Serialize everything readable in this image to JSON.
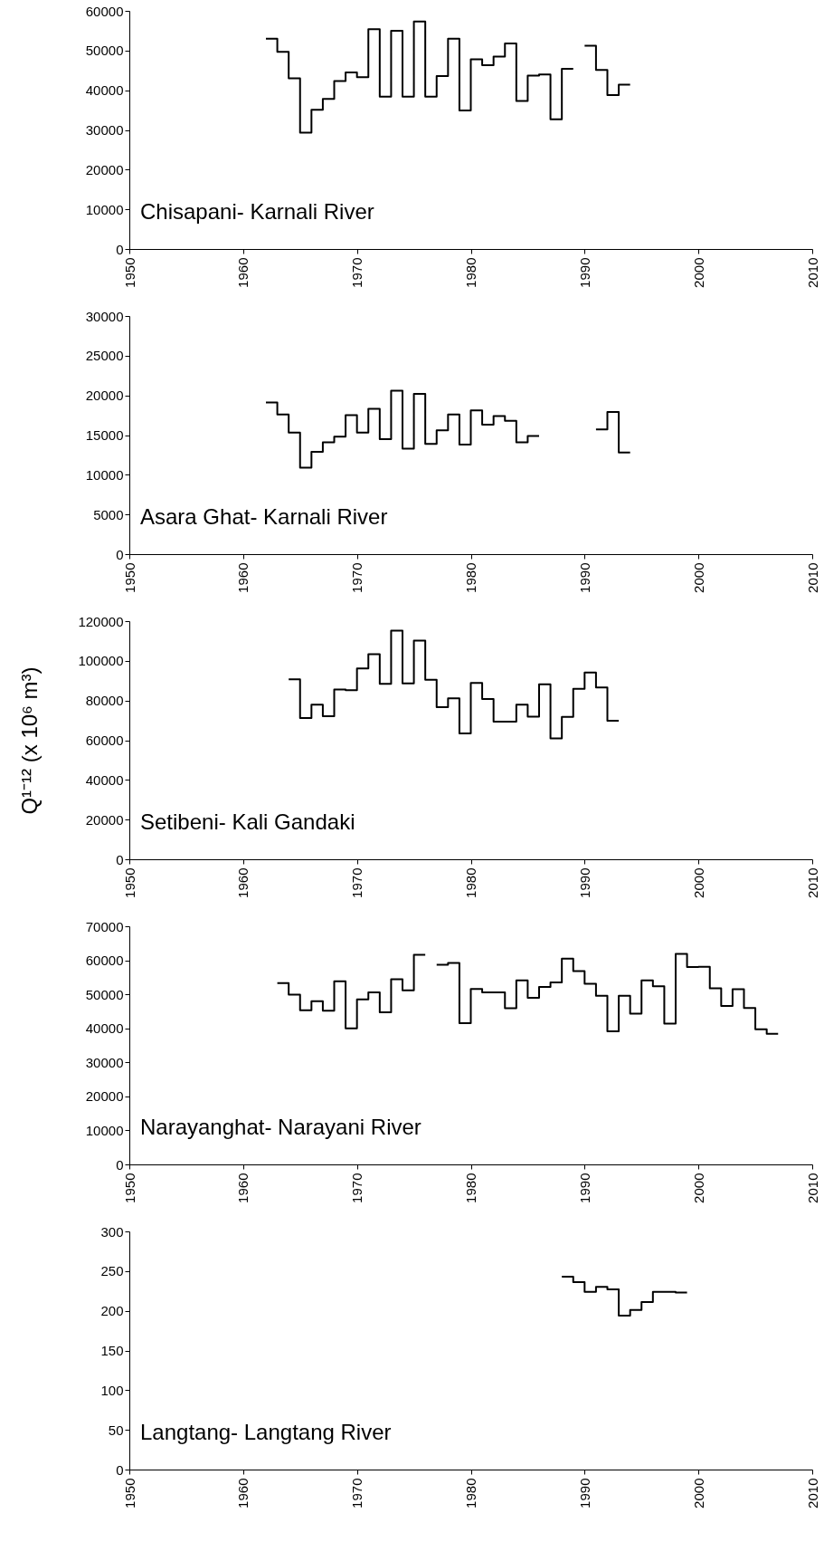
{
  "chart_data": [
    {
      "type": "step",
      "annotations": [
        "Chisapani- Karnali River"
      ],
      "xlim": [
        1950,
        2010
      ],
      "xticks": [
        1950,
        1960,
        1970,
        1980,
        1990,
        2000,
        2010
      ],
      "ylim": [
        0,
        60000
      ],
      "yticks": [
        0,
        10000,
        20000,
        30000,
        40000,
        50000,
        60000
      ],
      "series": [
        {
          "color": "#000000",
          "x": [
            1962,
            1963,
            1964,
            1965,
            1966,
            1967,
            1968,
            1969,
            1970,
            1971,
            1972,
            1973,
            1974,
            1975,
            1976,
            1977,
            1978,
            1979,
            1980,
            1981,
            1982,
            1983,
            1984,
            1985,
            1986,
            1987,
            1988,
            1989,
            1990,
            1991,
            1992,
            1993,
            1994
          ],
          "values": [
            53000,
            49700,
            43000,
            29300,
            35100,
            37800,
            42300,
            44500,
            43300,
            55400,
            38400,
            55000,
            38400,
            57300,
            38400,
            43600,
            53000,
            34900,
            47800,
            46300,
            48500,
            51800,
            37300,
            43700,
            44000,
            32700,
            45400,
            null,
            51200,
            45100,
            38800,
            41400,
            41400
          ]
        }
      ]
    },
    {
      "type": "step",
      "annotations": [
        "Asara Ghat- Karnali River"
      ],
      "xlim": [
        1950,
        2010
      ],
      "xticks": [
        1950,
        1960,
        1970,
        1980,
        1990,
        2000,
        2010
      ],
      "ylim": [
        0,
        30000
      ],
      "yticks": [
        0,
        5000,
        10000,
        15000,
        20000,
        25000,
        30000
      ],
      "series": [
        {
          "color": "#000000",
          "x": [
            1962,
            1963,
            1964,
            1965,
            1966,
            1967,
            1968,
            1969,
            1970,
            1971,
            1972,
            1973,
            1974,
            1975,
            1976,
            1977,
            1978,
            1979,
            1980,
            1981,
            1982,
            1983,
            1984,
            1985,
            1986,
            1987,
            1988,
            1989,
            1990,
            1991,
            1992,
            1993,
            1994
          ],
          "values": [
            19100,
            17600,
            15300,
            10900,
            12900,
            14100,
            14800,
            17500,
            15300,
            18300,
            14500,
            20600,
            13300,
            20200,
            13900,
            15600,
            17600,
            13800,
            18100,
            16300,
            17400,
            16800,
            14100,
            14900,
            null,
            null,
            null,
            null,
            null,
            15700,
            17900,
            12800,
            12800
          ]
        }
      ]
    },
    {
      "type": "step",
      "ylabel": "Q¹⁻¹²  (x 10⁶ m³)",
      "annotations": [
        "Setibeni- Kali Gandaki"
      ],
      "xlim": [
        1950,
        2010
      ],
      "xticks": [
        1950,
        1960,
        1970,
        1980,
        1990,
        2000,
        2010
      ],
      "ylim": [
        0,
        120000
      ],
      "yticks": [
        0,
        20000,
        40000,
        60000,
        80000,
        100000,
        120000
      ],
      "series": [
        {
          "color": "#000000",
          "x": [
            1964,
            1965,
            1966,
            1967,
            1968,
            1969,
            1970,
            1971,
            1972,
            1973,
            1974,
            1975,
            1976,
            1977,
            1978,
            1979,
            1980,
            1981,
            1982,
            1983,
            1984,
            1985,
            1986,
            1987,
            1988,
            1989,
            1990,
            1991,
            1992,
            1993
          ],
          "values": [
            90700,
            71200,
            77900,
            72100,
            85600,
            85200,
            96200,
            103300,
            88400,
            115200,
            88600,
            110200,
            90500,
            76700,
            81100,
            63400,
            88900,
            80800,
            69400,
            69400,
            77900,
            71900,
            88200,
            60900,
            71700,
            85900,
            94100,
            86600,
            69800,
            69800
          ]
        }
      ]
    },
    {
      "type": "step",
      "annotations": [
        "Narayanghat- Narayani River"
      ],
      "xlim": [
        1950,
        2010
      ],
      "xticks": [
        1950,
        1960,
        1970,
        1980,
        1990,
        2000,
        2010
      ],
      "ylim": [
        0,
        70000
      ],
      "yticks": [
        0,
        10000,
        20000,
        30000,
        40000,
        50000,
        60000,
        70000
      ],
      "series": [
        {
          "color": "#000000",
          "x": [
            1963,
            1964,
            1965,
            1966,
            1967,
            1968,
            1969,
            1970,
            1971,
            1972,
            1973,
            1974,
            1975,
            1976,
            1977,
            1978,
            1979,
            1980,
            1981,
            1982,
            1983,
            1984,
            1985,
            1986,
            1987,
            1988,
            1989,
            1990,
            1991,
            1992,
            1993,
            1994,
            1995,
            1996,
            1997,
            1998,
            1999,
            2000,
            2001,
            2002,
            2003,
            2004,
            2005,
            2006,
            2007
          ],
          "values": [
            53300,
            49900,
            45300,
            48000,
            45200,
            53800,
            40000,
            48500,
            50600,
            44700,
            54400,
            51200,
            61600,
            null,
            58700,
            59200,
            41500,
            51600,
            50600,
            50600,
            45900,
            54100,
            49000,
            52200,
            53500,
            60500,
            56800,
            53100,
            49600,
            39100,
            49600,
            44300,
            54100,
            52400,
            41400,
            61900,
            58000,
            58100,
            51800,
            46600,
            51500,
            46000,
            39700,
            38400,
            38400
          ]
        }
      ]
    },
    {
      "type": "step",
      "annotations": [
        "Langtang- Langtang River"
      ],
      "xlim": [
        1950,
        2010
      ],
      "xticks": [
        1950,
        1960,
        1970,
        1980,
        1990,
        2000,
        2010
      ],
      "ylim": [
        0,
        300
      ],
      "yticks": [
        0,
        50,
        100,
        150,
        200,
        250,
        300
      ],
      "series": [
        {
          "color": "#000000",
          "x": [
            1988,
            1989,
            1990,
            1991,
            1992,
            1993,
            1994,
            1995,
            1996,
            1997,
            1998,
            1999
          ],
          "values": [
            243,
            236,
            224,
            230,
            227,
            194,
            201,
            211,
            224,
            224,
            223,
            223
          ]
        }
      ]
    }
  ]
}
